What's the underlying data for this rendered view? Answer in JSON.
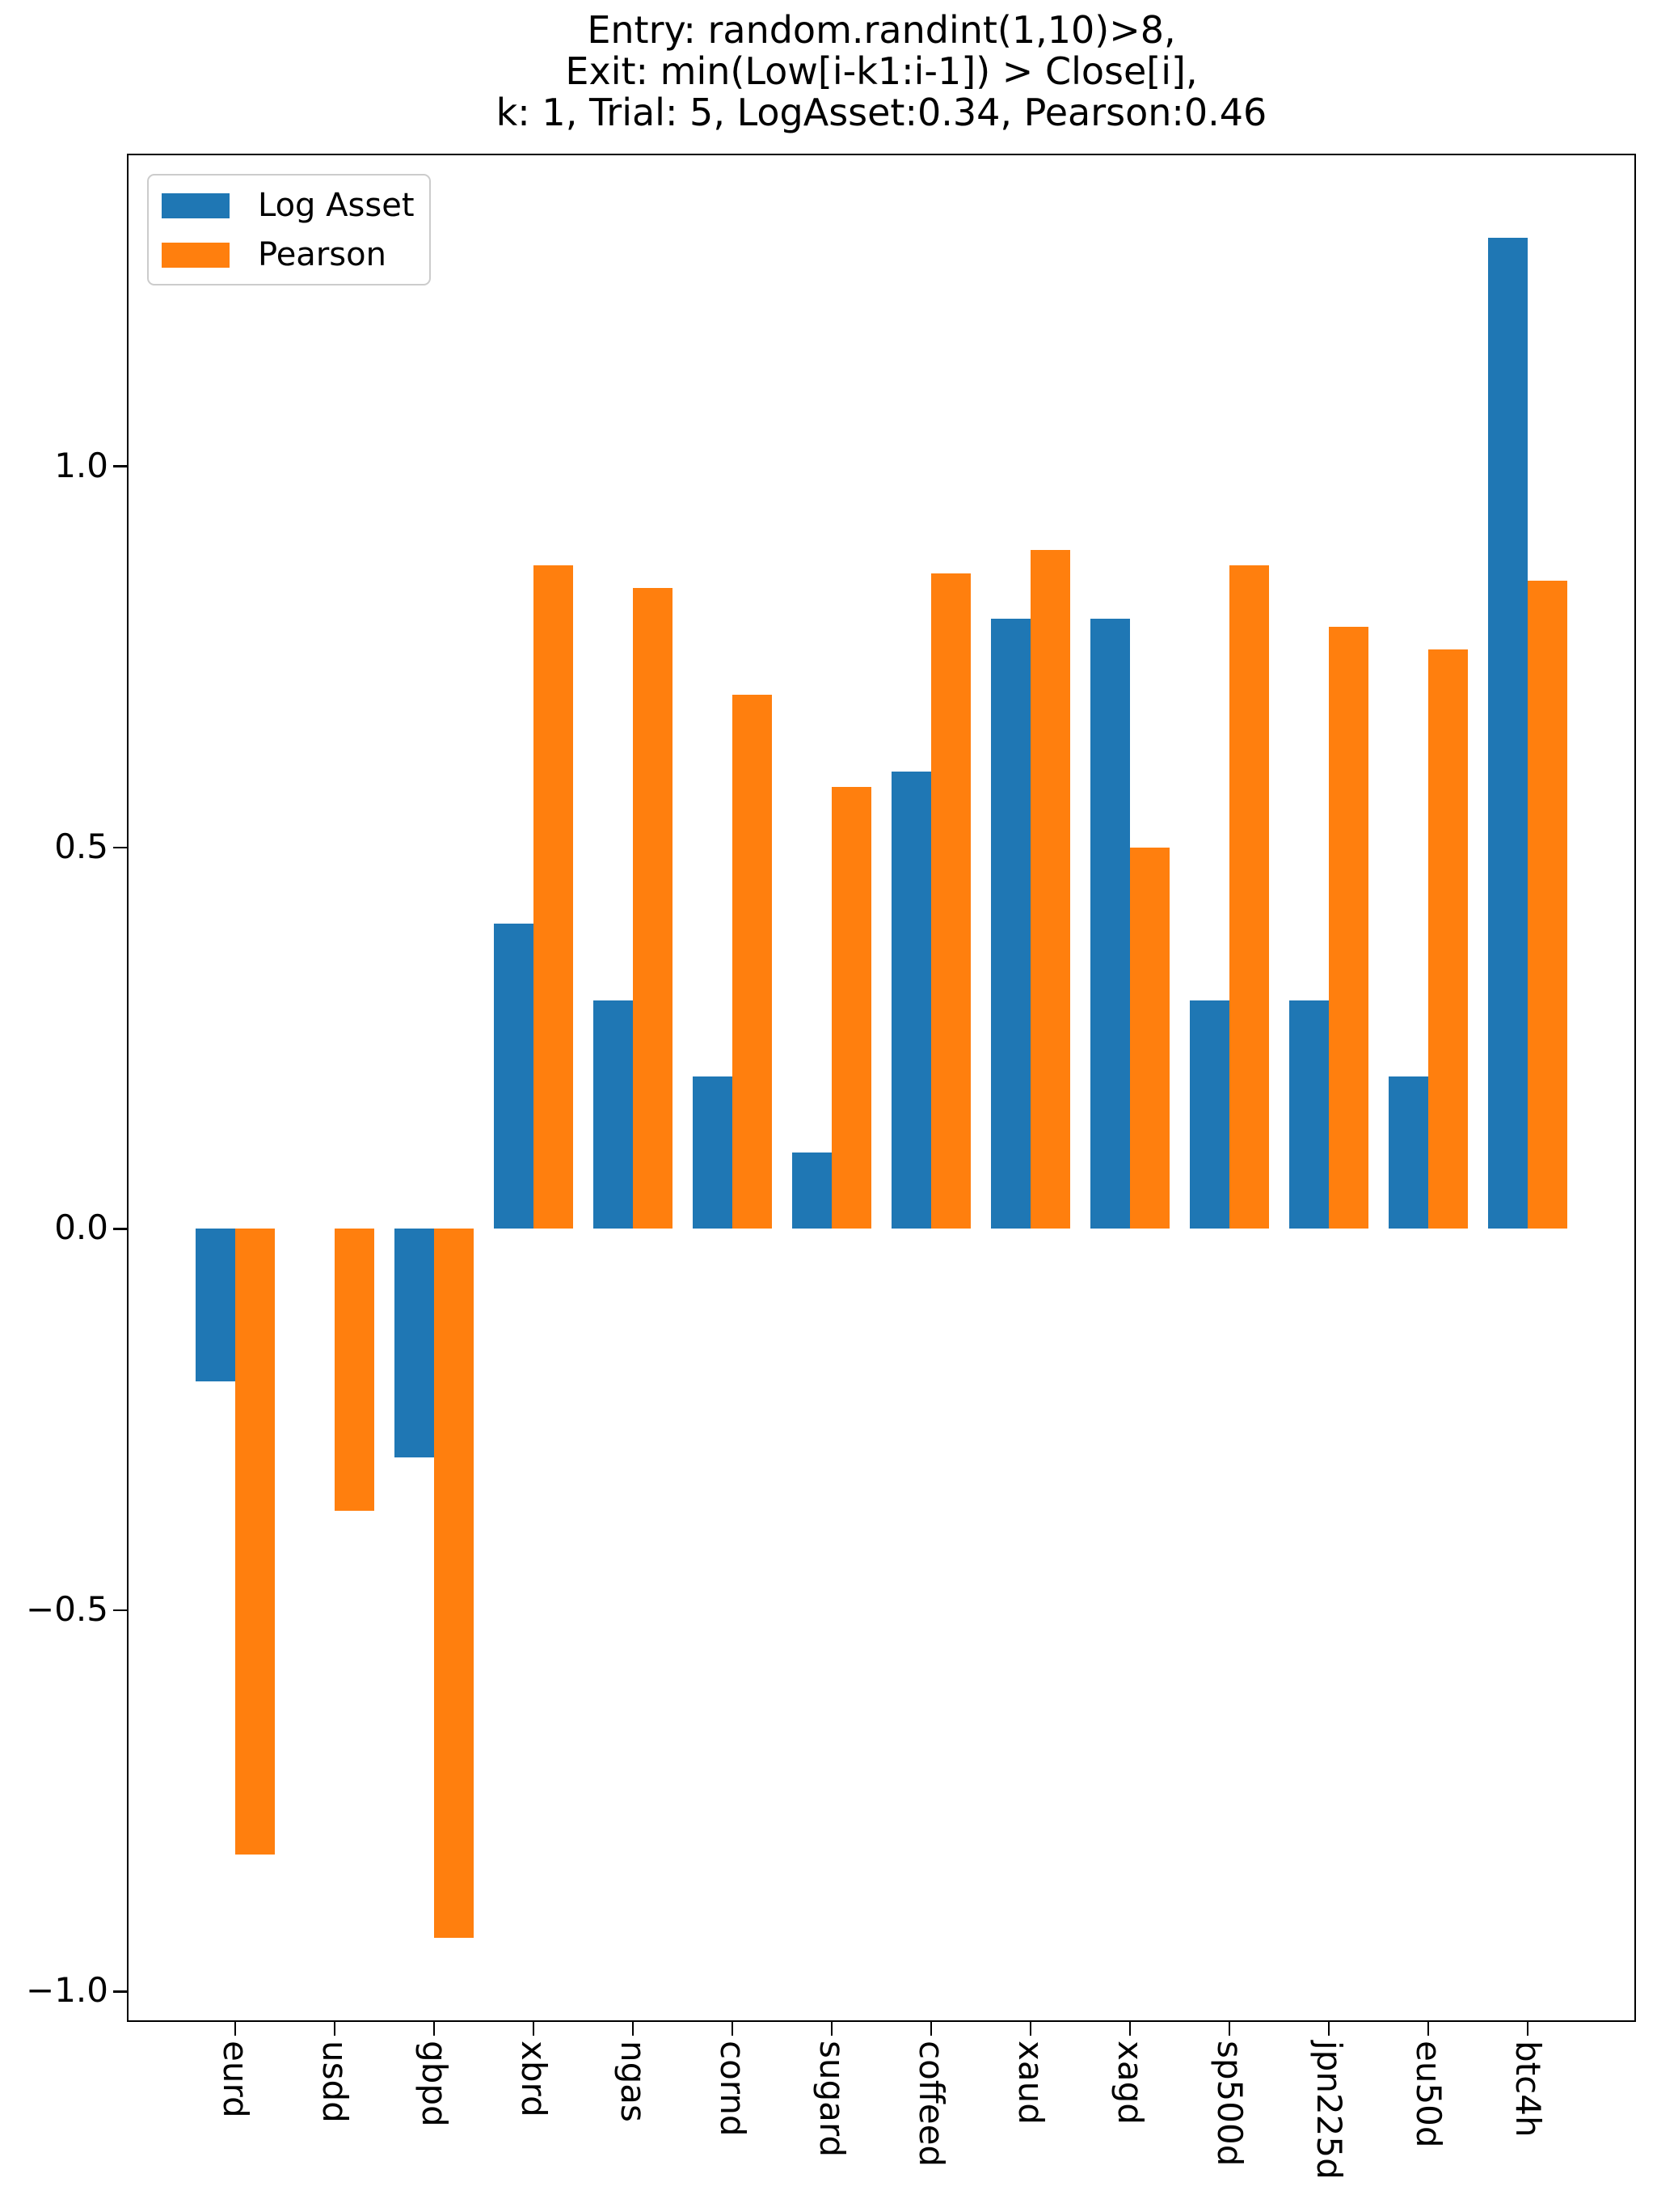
{
  "title": {
    "line1": "Entry: random.randint(1,10)>8,",
    "line2": "Exit: min(Low[i-k1:i-1]) > Close[i],",
    "line3": "k: 1, Trial: 5, LogAsset:0.34, Pearson:0.46"
  },
  "legend": {
    "items": [
      {
        "label": "Log Asset",
        "color": "#1f77b4"
      },
      {
        "label": "Pearson",
        "color": "#ff7f0e"
      }
    ]
  },
  "chart_data": {
    "type": "bar",
    "title": "Entry: random.randint(1,10)>8,\nExit: min(Low[i-k1:i-1]) > Close[i],\nk: 1, Trial: 5, LogAsset:0.34, Pearson:0.46",
    "categories": [
      "eurd",
      "usdd",
      "gbpd",
      "xbrd",
      "ngas",
      "cornd",
      "sugard",
      "coffeed",
      "xaud",
      "xagd",
      "sp500d",
      "jpn225d",
      "eu50d",
      "btc4h"
    ],
    "series": [
      {
        "name": "Log Asset",
        "color": "#1f77b4",
        "values": [
          -0.2,
          0.0,
          -0.3,
          0.4,
          0.3,
          0.2,
          0.1,
          0.6,
          0.8,
          0.8,
          0.3,
          0.3,
          0.2,
          1.3
        ]
      },
      {
        "name": "Pearson",
        "color": "#ff7f0e",
        "values": [
          -0.82,
          -0.37,
          -0.93,
          0.87,
          0.84,
          0.7,
          0.58,
          0.86,
          0.89,
          0.5,
          0.87,
          0.79,
          0.76,
          0.85
        ]
      }
    ],
    "bar_width": 0.4,
    "xlabel": "",
    "ylabel": "",
    "yticks": [
      -1.0,
      -0.5,
      0.0,
      0.5,
      1.0
    ],
    "ylim": [
      -1.04,
      1.41
    ],
    "xlim": [
      -1.09,
      14.09
    ],
    "grid": false,
    "legend_position": "upper left"
  }
}
